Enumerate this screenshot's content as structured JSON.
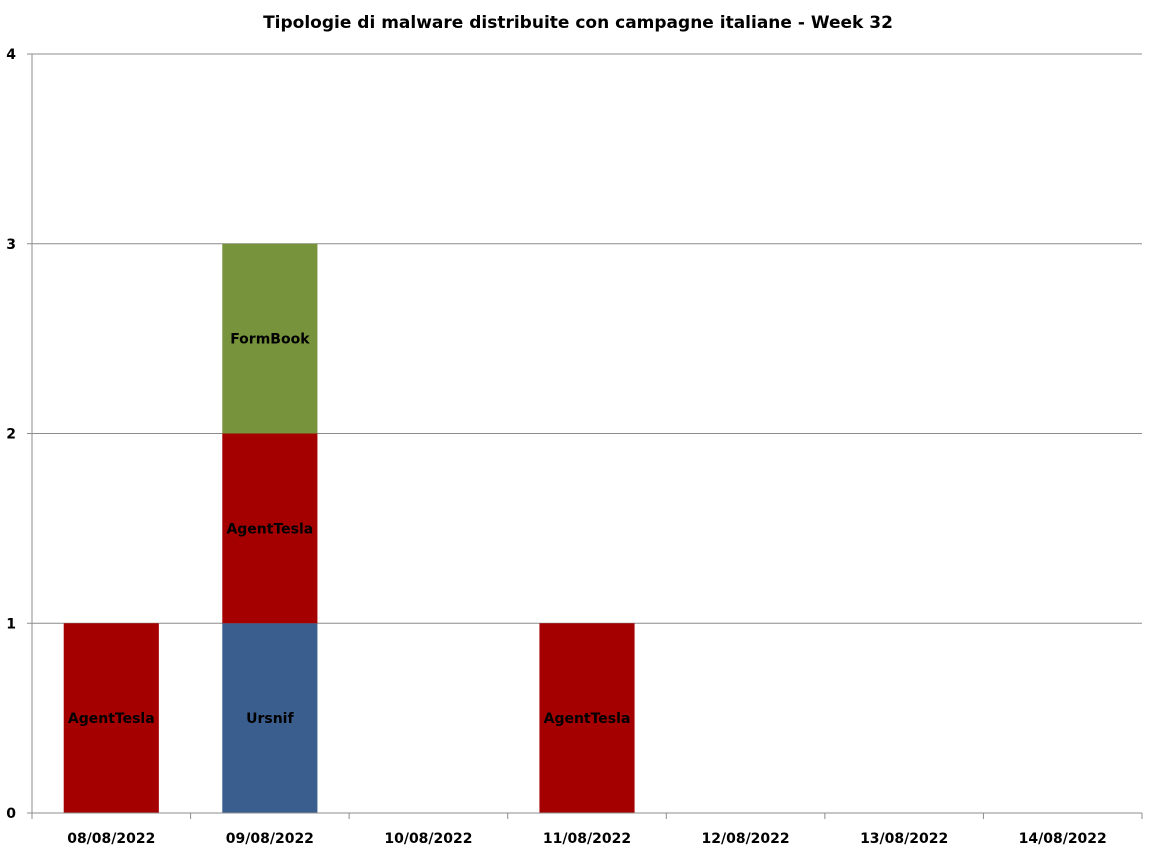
{
  "chart_data": {
    "type": "bar",
    "stacked": true,
    "title": "Tipologie  di malware distribuite con campagne italiane - Week 32",
    "xlabel": "",
    "ylabel": "",
    "ylim": [
      0,
      4
    ],
    "yticks": [
      "0",
      "1",
      "2",
      "3",
      "4"
    ],
    "grid": true,
    "legend": "none",
    "categories": [
      "08/08/2022",
      "09/08/2022",
      "10/08/2022",
      "11/08/2022",
      "12/08/2022",
      "13/08/2022",
      "14/08/2022"
    ],
    "series": [
      {
        "name": "Ursnif",
        "color": "#3a5f8f",
        "values": [
          0,
          1,
          0,
          0,
          0,
          0,
          0
        ]
      },
      {
        "name": "AgentTesla",
        "color": "#a50000",
        "values": [
          1,
          1,
          0,
          1,
          0,
          0,
          0
        ]
      },
      {
        "name": "FormBook",
        "color": "#77933c",
        "values": [
          0,
          1,
          0,
          0,
          0,
          0,
          0
        ]
      }
    ]
  }
}
